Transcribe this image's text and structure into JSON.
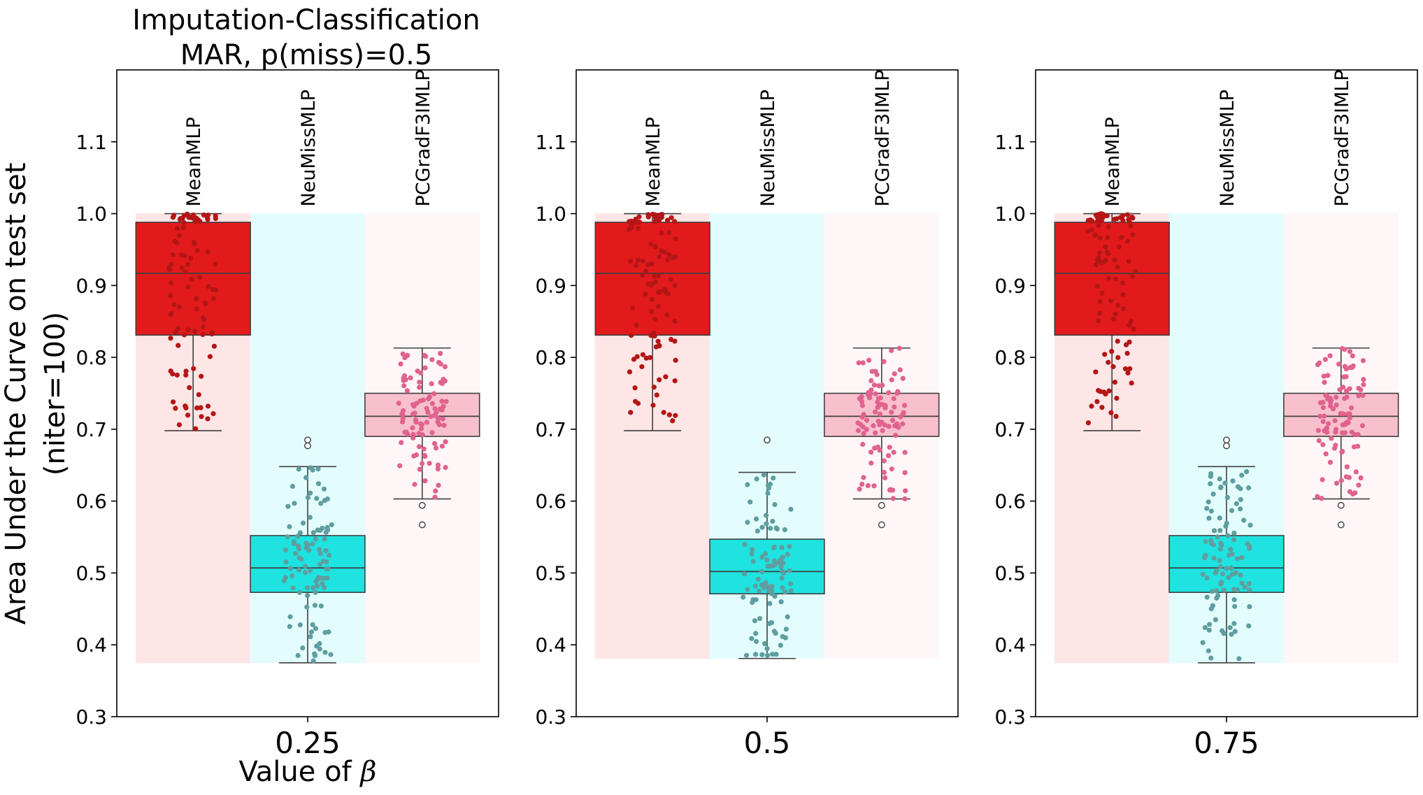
{
  "figure": {
    "title_lines": [
      "Imputation-Classification",
      "MAR, p(miss)=0.5"
    ],
    "ylabel_lines": [
      "Area Under the Curve on test set",
      "(niter=100)"
    ],
    "xlabel_prefix": "Value of ",
    "xlabel_symbol": "β"
  },
  "colors": {
    "MeanMLP": {
      "box": "#e31a1c",
      "band": "#fee5e6",
      "dot": "#b41515"
    },
    "NeuMissMLP": {
      "box": "#1ee3e0",
      "band": "#e3fdfd",
      "dot": "#5f9ea0"
    },
    "PCGradF3IMLP": {
      "box": "#f8c0cc",
      "band": "#fef6f7",
      "dot": "#e0628f"
    }
  },
  "chart_data": [
    {
      "type": "box",
      "xtick": "0.25",
      "ylim": [
        0.3,
        1.2
      ],
      "yticks": [
        0.3,
        0.4,
        0.5,
        0.6,
        0.7,
        0.8,
        0.9,
        1.0,
        1.1
      ],
      "ytick_labels": [
        "0.3",
        "0.4",
        "0.5",
        "0.6",
        "0.7",
        "0.8",
        "0.9",
        "1.0",
        "1.1"
      ],
      "band_range": [
        0.375,
        1.0
      ],
      "series": [
        {
          "name": "MeanMLP",
          "q1": 0.831,
          "median": 0.917,
          "q3": 0.988,
          "whisker_low": 0.698,
          "whisker_high": 1.0,
          "outliers": []
        },
        {
          "name": "NeuMissMLP",
          "q1": 0.473,
          "median": 0.507,
          "q3": 0.552,
          "whisker_low": 0.375,
          "whisker_high": 0.648,
          "outliers": [
            0.677,
            0.685
          ]
        },
        {
          "name": "PCGradF3IMLP",
          "q1": 0.69,
          "median": 0.718,
          "q3": 0.75,
          "whisker_low": 0.603,
          "whisker_high": 0.813,
          "outliers": [
            0.594,
            0.567
          ]
        }
      ]
    },
    {
      "type": "box",
      "xtick": "0.5",
      "ylim": [
        0.3,
        1.2
      ],
      "yticks": [
        0.3,
        0.4,
        0.5,
        0.6,
        0.7,
        0.8,
        0.9,
        1.0,
        1.1
      ],
      "ytick_labels": [
        "0.3",
        "0.4",
        "0.5",
        "0.6",
        "0.7",
        "0.8",
        "0.9",
        "1.0",
        "1.1"
      ],
      "band_range": [
        0.381,
        1.0
      ],
      "series": [
        {
          "name": "MeanMLP",
          "q1": 0.831,
          "median": 0.917,
          "q3": 0.988,
          "whisker_low": 0.698,
          "whisker_high": 1.0,
          "outliers": []
        },
        {
          "name": "NeuMissMLP",
          "q1": 0.471,
          "median": 0.502,
          "q3": 0.547,
          "whisker_low": 0.381,
          "whisker_high": 0.64,
          "outliers": [
            0.685
          ]
        },
        {
          "name": "PCGradF3IMLP",
          "q1": 0.69,
          "median": 0.718,
          "q3": 0.75,
          "whisker_low": 0.603,
          "whisker_high": 0.813,
          "outliers": [
            0.594,
            0.567
          ]
        }
      ]
    },
    {
      "type": "box",
      "xtick": "0.75",
      "ylim": [
        0.3,
        1.2
      ],
      "yticks": [
        0.3,
        0.4,
        0.5,
        0.6,
        0.7,
        0.8,
        0.9,
        1.0,
        1.1
      ],
      "ytick_labels": [
        "0.3",
        "0.4",
        "0.5",
        "0.6",
        "0.7",
        "0.8",
        "0.9",
        "1.0",
        "1.1"
      ],
      "band_range": [
        0.375,
        1.0
      ],
      "series": [
        {
          "name": "MeanMLP",
          "q1": 0.831,
          "median": 0.917,
          "q3": 0.988,
          "whisker_low": 0.698,
          "whisker_high": 1.0,
          "outliers": []
        },
        {
          "name": "NeuMissMLP",
          "q1": 0.473,
          "median": 0.507,
          "q3": 0.552,
          "whisker_low": 0.375,
          "whisker_high": 0.648,
          "outliers": [
            0.677,
            0.685
          ]
        },
        {
          "name": "PCGradF3IMLP",
          "q1": 0.69,
          "median": 0.718,
          "q3": 0.75,
          "whisker_low": 0.603,
          "whisker_high": 0.813,
          "outliers": [
            0.594,
            0.567
          ]
        }
      ]
    }
  ]
}
